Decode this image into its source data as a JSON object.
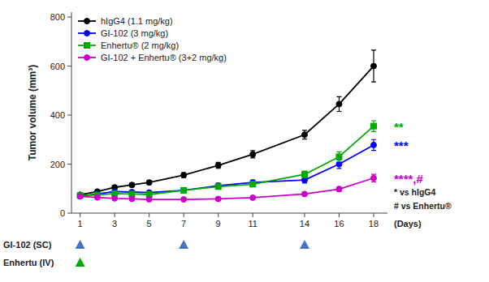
{
  "chart_data": {
    "type": "line",
    "ylabel": "Tumor volume (mm³)",
    "xlabel": "(Days)",
    "x": [
      1,
      2,
      3,
      4,
      5,
      7,
      9,
      11,
      14,
      16,
      18
    ],
    "series": [
      {
        "name": "hIgG4 (1.1 mg/kg)",
        "color": "#000000",
        "marker": "circle",
        "values": [
          75,
          88,
          105,
          115,
          125,
          155,
          195,
          240,
          320,
          445,
          600
        ],
        "errors": [
          5,
          6,
          7,
          8,
          8,
          10,
          12,
          15,
          18,
          30,
          65
        ]
      },
      {
        "name": "GI-102 (3 mg/kg)",
        "color": "#0000ff",
        "marker": "circle",
        "values": [
          70,
          78,
          88,
          86,
          84,
          93,
          112,
          125,
          135,
          200,
          278
        ],
        "errors": [
          5,
          5,
          6,
          6,
          6,
          8,
          10,
          10,
          12,
          18,
          22
        ]
      },
      {
        "name": "Enhertu® (2 mg/kg)",
        "color": "#00aa00",
        "marker": "square",
        "values": [
          72,
          74,
          80,
          78,
          76,
          93,
          108,
          118,
          158,
          230,
          355
        ],
        "errors": [
          5,
          5,
          6,
          6,
          6,
          8,
          10,
          10,
          14,
          20,
          22
        ]
      },
      {
        "name": "GI-102 + Enhertu® (3+2 mg/kg)",
        "color": "#cc00cc",
        "marker": "circle",
        "values": [
          68,
          64,
          60,
          58,
          56,
          56,
          58,
          63,
          78,
          98,
          143
        ],
        "errors": [
          4,
          4,
          4,
          4,
          4,
          5,
          5,
          5,
          7,
          10,
          15
        ]
      }
    ],
    "xlim": [
      0.5,
      18.8
    ],
    "xticks": [
      1,
      3,
      5,
      7,
      9,
      11,
      14,
      16,
      18
    ],
    "ylim": [
      0,
      820
    ],
    "yticks": [
      0,
      200,
      400,
      600,
      800
    ],
    "grid": false,
    "legend": "upper left",
    "annotations": [
      {
        "text": "**",
        "color": "#00aa00"
      },
      {
        "text": "***",
        "color": "#0000ff"
      },
      {
        "text": "****,#",
        "color": "#cc00cc"
      },
      {
        "text": "* vs hIgG4"
      },
      {
        "text": "# vs Enhertu®"
      }
    ],
    "dosing": [
      {
        "label": "GI-102 (SC)",
        "color": "#4472c4",
        "days": [
          1,
          7,
          14
        ]
      },
      {
        "label": "Enhertu (IV)",
        "color": "#00aa00",
        "days": [
          1
        ]
      }
    ]
  }
}
